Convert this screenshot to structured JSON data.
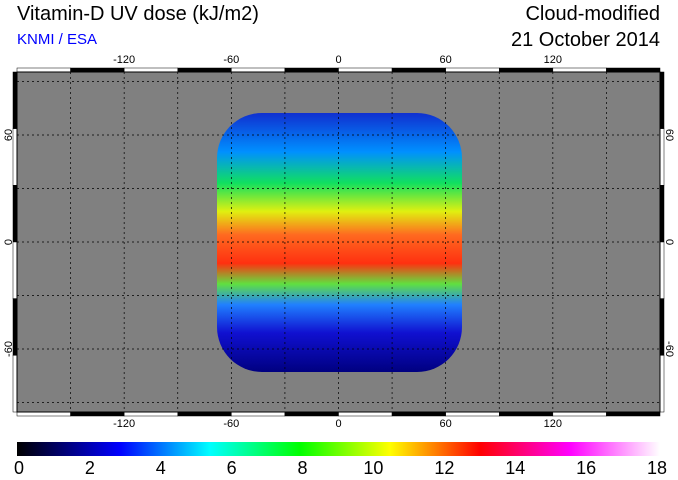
{
  "header": {
    "title": "Vitamin-D UV dose (kJ/m2)",
    "credit": "KNMI / ESA",
    "mode": "Cloud-modified",
    "date": "21 October 2014"
  },
  "map": {
    "lon_ticks": [
      "-120",
      "-60",
      "0",
      "60",
      "120"
    ],
    "lat_ticks": [
      "60",
      "0",
      "-60"
    ],
    "land_color": "#808080"
  },
  "colorbar": {
    "labels": [
      "0",
      "2",
      "4",
      "6",
      "8",
      "10",
      "12",
      "14",
      "16",
      "18"
    ],
    "colors": [
      "#000000",
      "#0000ff",
      "#00ffff",
      "#00ff00",
      "#ffff00",
      "#ff0000",
      "#ff00ff",
      "#ffffff"
    ]
  }
}
